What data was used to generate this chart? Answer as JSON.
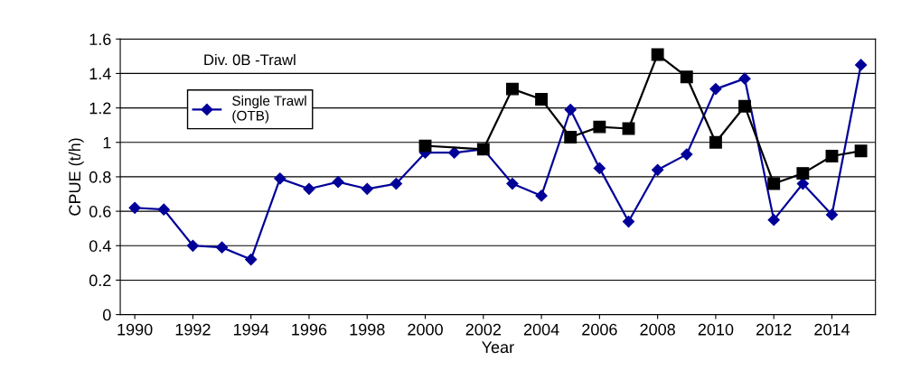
{
  "chart_data": {
    "type": "line",
    "xlabel": "Year",
    "ylabel": "CPUE (t/h)",
    "annotations": [
      "Div. 0B -Trawl"
    ],
    "x": [
      1990,
      1991,
      1992,
      1993,
      1994,
      1995,
      1996,
      1997,
      1998,
      1999,
      2000,
      2001,
      2002,
      2003,
      2004,
      2005,
      2006,
      2007,
      2008,
      2009,
      2010,
      2011,
      2012,
      2013,
      2014,
      2015
    ],
    "series": [
      {
        "name": "Single Trawl\n(OTB)",
        "color": "#000099",
        "marker": "diamond",
        "values": [
          0.62,
          0.61,
          0.4,
          0.39,
          0.32,
          0.79,
          0.73,
          0.77,
          0.73,
          0.76,
          0.94,
          0.94,
          0.96,
          0.76,
          0.69,
          1.19,
          0.85,
          0.54,
          0.84,
          0.93,
          1.31,
          1.37,
          0.55,
          0.76,
          0.58,
          1.45
        ]
      },
      {
        "color": "#000000",
        "marker": "square",
        "x": [
          2000,
          2002,
          2003,
          2004,
          2005,
          2006,
          2007,
          2008,
          2009,
          2010,
          2011,
          2012,
          2013,
          2014,
          2015
        ],
        "values": [
          0.98,
          0.96,
          1.31,
          1.25,
          1.03,
          1.09,
          1.08,
          1.51,
          1.38,
          1.0,
          1.21,
          0.76,
          0.82,
          0.92,
          0.95
        ]
      }
    ],
    "xlim": [
      1989.5,
      2015.5
    ],
    "xticks": [
      1990,
      1992,
      1994,
      1996,
      1998,
      2000,
      2002,
      2004,
      2006,
      2008,
      2010,
      2012,
      2014
    ],
    "ylim": [
      0,
      1.6
    ],
    "yticks": [
      0,
      0.2,
      0.4,
      0.6,
      0.8,
      1,
      1.2,
      1.4,
      1.6
    ],
    "grid": "y",
    "legend": "top left",
    "line_style": "solid"
  }
}
